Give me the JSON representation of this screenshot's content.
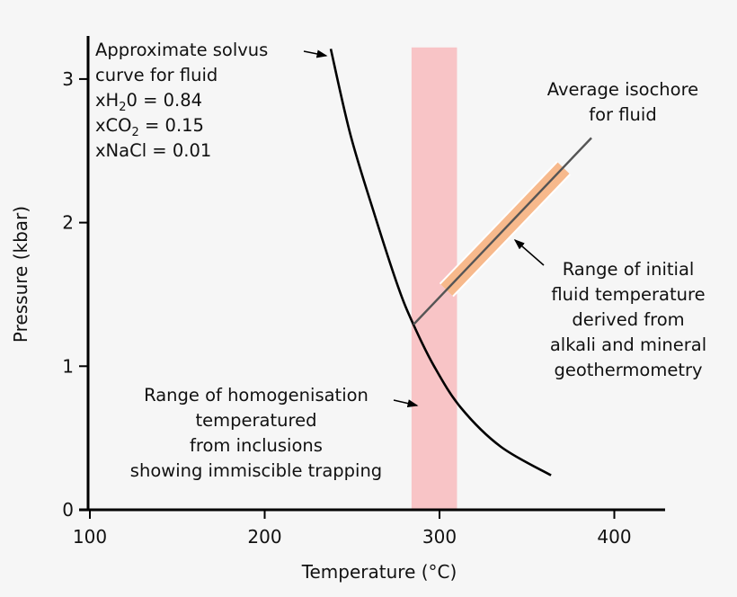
{
  "chart_data": {
    "type": "line",
    "title": "",
    "xlabel": "Temperature (°C)",
    "ylabel": "Pressure (kbar)",
    "xlim": [
      100,
      430
    ],
    "ylim": [
      0,
      3.3
    ],
    "xticks": [
      "100",
      "200",
      "300",
      "400"
    ],
    "yticks": [
      "0",
      "1",
      "2",
      "3"
    ],
    "grid": false,
    "colors": {
      "curve": "#000000",
      "isochore": "#555555",
      "homogenisation_band": "#f8c4c6",
      "initial_temp_band": "#f7b98c"
    },
    "series": [
      {
        "id": "solvus",
        "x": [
          237.8,
          249.1,
          263.0,
          276.4,
          285.1,
          296.9,
          312.3,
          335.0,
          363.8
        ],
        "y": [
          3.21,
          2.61,
          2.05,
          1.55,
          1.29,
          1.0,
          0.71,
          0.44,
          0.24
        ]
      },
      {
        "id": "isochore",
        "x": [
          285.1,
          386.9
        ],
        "y": [
          1.29,
          2.59
        ]
      }
    ],
    "bands": [
      {
        "id": "homogenisation-range",
        "x": [
          284,
          310
        ],
        "y": [
          0,
          3.22
        ]
      },
      {
        "id": "initial-temperature-range",
        "x": [
          304,
          371
        ],
        "y": [
          1.53,
          2.38
        ]
      }
    ],
    "annotations": {
      "solvus": [
        "Approximate solvus",
        "curve for fluid"
      ],
      "composition": {
        "h2o_prefix": "xH",
        "h2o_sub": "2",
        "h2o_rest": "0 = 0.84",
        "co2_prefix": "xCO",
        "co2_sub": "2",
        "co2_rest": " = 0.15",
        "nacl": "xNaCl = 0.01"
      },
      "isochore": [
        "Average isochore",
        "for fluid"
      ],
      "initial_temp": [
        "Range of initial",
        "fluid temperature",
        "derived from",
        "alkali and mineral",
        "geothermometry"
      ],
      "homogenisation": [
        "Range of homogenisation",
        "temperatured",
        "from inclusions",
        "showing immiscible trapping"
      ]
    }
  }
}
